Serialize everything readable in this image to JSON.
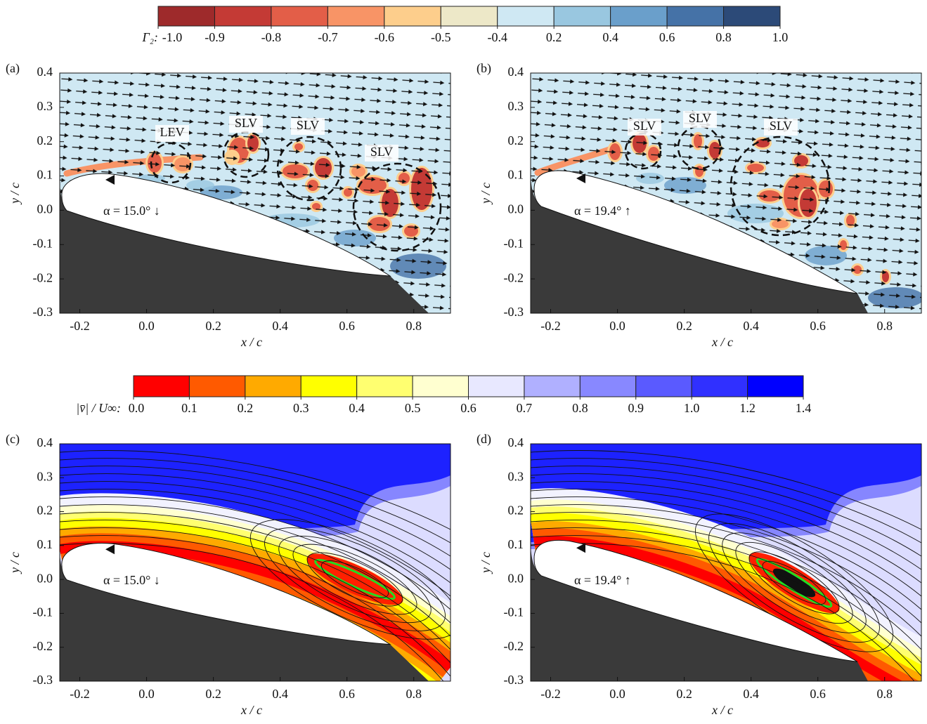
{
  "colorbar_gamma": {
    "label": "Γ₂:",
    "colors": [
      "#9e2a2b",
      "#c43a35",
      "#e35e48",
      "#f89466",
      "#fdce8c",
      "#ede8c8",
      "#cfe8f3",
      "#99c7e0",
      "#6a9fcb",
      "#4572a7",
      "#2c4a78"
    ],
    "ticks": [
      {
        "value": -1,
        "label": "-1.0"
      },
      -0.9,
      -0.8,
      -0.7,
      -0.6,
      -0.5,
      -0.4,
      0.2,
      0.4,
      0.6,
      0.8,
      {
        "value": 1,
        "label": "1.0"
      }
    ]
  },
  "colorbar_velocity": {
    "label": "|v̄| / U∞:",
    "colors": [
      "#ff0000",
      "#ff5a00",
      "#ffaa00",
      "#ffff00",
      "#ffff70",
      "#ffffd0",
      "#e8e8ff",
      "#b0b0ff",
      "#8888ff",
      "#5a5aff",
      "#3030ff",
      "#0000ff"
    ],
    "ticks": [
      {
        "value": 0,
        "label": "0.0"
      },
      0.1,
      0.2,
      0.3,
      0.4,
      0.5,
      0.6,
      0.7,
      0.8,
      0.9,
      {
        "value": 1,
        "label": "1.0"
      },
      1.2,
      1.4
    ]
  },
  "axes": {
    "xlabel": "x / c",
    "ylabel": "y / c",
    "xlim": [
      -0.26,
      0.91
    ],
    "ylim": [
      -0.3,
      0.4
    ],
    "xticks": [
      -0.2,
      {
        "value": 0,
        "label": "0.0"
      },
      0.2,
      0.4,
      0.6,
      0.8
    ],
    "yticks": [
      0.4,
      0.3,
      0.2,
      0.1,
      {
        "value": 0,
        "label": "0.0"
      },
      -0.1,
      -0.2,
      -0.3
    ]
  },
  "panels": [
    {
      "label": "(a)",
      "annotation": "α = 15.0° ↓",
      "vortex_labels": [
        "LEV",
        "SLV",
        "SLV",
        "SLV"
      ]
    },
    {
      "label": "(b)",
      "annotation": "α = 19.4° ↑",
      "vortex_labels": [
        "SLV",
        "SLV",
        "SLV"
      ]
    },
    {
      "label": "(c)",
      "annotation": "α = 15.0° ↓"
    },
    {
      "label": "(d)",
      "annotation": "α = 19.4° ↑"
    }
  ]
}
